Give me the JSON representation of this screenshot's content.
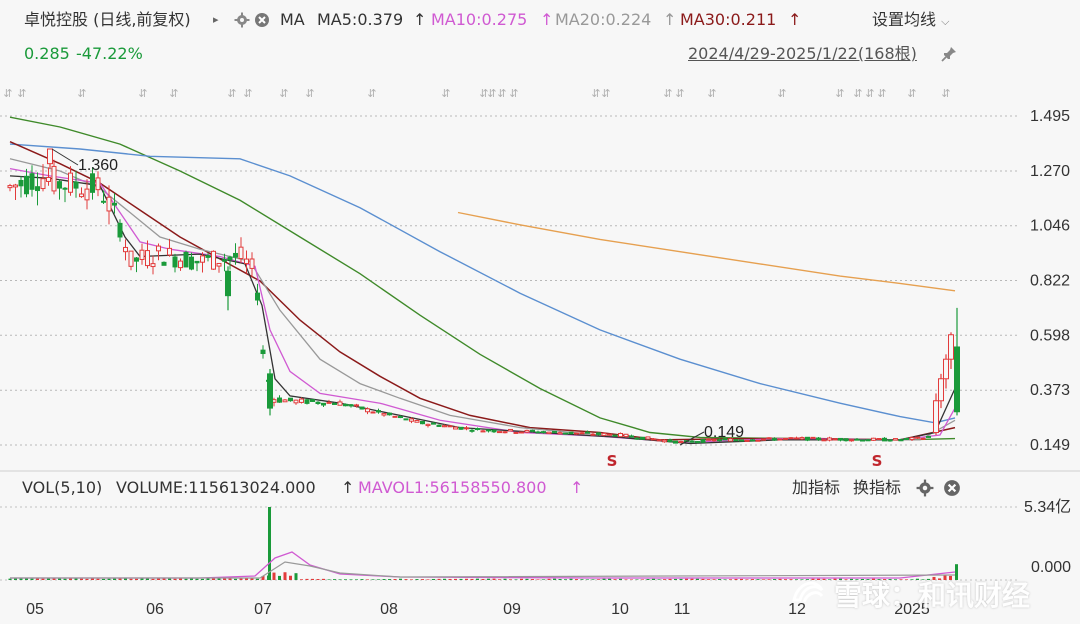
{
  "stock": {
    "title": "卓悦控股 (日线,前复权)",
    "price": "0.285",
    "change_pct": "-47.22%",
    "range": "2024/4/29-2025/1/22(168根)"
  },
  "ma_bar": {
    "label": "MA",
    "items": [
      {
        "text": "MA5:0.379",
        "arrow": "↑",
        "color": "#333333"
      },
      {
        "text": "MA10:0.275",
        "arrow": "↑",
        "color": "#d05ad2"
      },
      {
        "text": "MA20:0.224",
        "arrow": "↑",
        "color": "#999999"
      },
      {
        "text": "MA30:0.211",
        "arrow": "↑",
        "color": "#8b1a1a"
      }
    ],
    "settings": "设置均线"
  },
  "volume_bar": {
    "label": "VOL(5,10)",
    "volume": "VOLUME:115613024.000",
    "volume_arrow": "↑",
    "mavol": "MAVOL1:56158550.800",
    "mavol_arrow": "↑",
    "add_indicator": "加指标",
    "switch_indicator": "换指标"
  },
  "watermark": "雪球：和讯财经",
  "colors": {
    "up": "#e23b3b",
    "down": "#1a9a3a",
    "ma5": "#333333",
    "ma10": "#d05ad2",
    "ma20": "#999999",
    "ma30": "#8b1a1a",
    "ma60": "#3f8a2a",
    "ma120": "#5b8fd0",
    "ma250": "#e6a050"
  },
  "chart_data": {
    "type": "candlestick",
    "y_ticks": [
      "1.495",
      "1.270",
      "1.046",
      "0.822",
      "0.598",
      "0.373",
      "0.149"
    ],
    "ylim": [
      0.149,
      1.495
    ],
    "x_ticks": [
      "05",
      "06",
      "07",
      "08",
      "09",
      "10",
      "11",
      "12",
      "2025"
    ],
    "annotations": [
      {
        "text": "1.360",
        "x": "2024-05",
        "y": 1.36
      },
      {
        "text": "0.149",
        "x": "2024-11",
        "y": 0.149
      }
    ],
    "price_series": [
      {
        "x": "2024-05",
        "y": 1.25
      },
      {
        "x": "2024-06",
        "y": 0.95
      },
      {
        "x": "2024-07",
        "y": 0.38
      },
      {
        "x": "2024-08",
        "y": 0.3
      },
      {
        "x": "2024-09",
        "y": 0.2
      },
      {
        "x": "2024-10",
        "y": 0.17
      },
      {
        "x": "2024-11",
        "y": 0.16
      },
      {
        "x": "2024-12",
        "y": 0.17
      },
      {
        "x": "2025-01",
        "y": 0.285
      }
    ],
    "volume_ticks": [
      "5.34亿",
      "0.000"
    ],
    "volume_max": 534000000
  }
}
